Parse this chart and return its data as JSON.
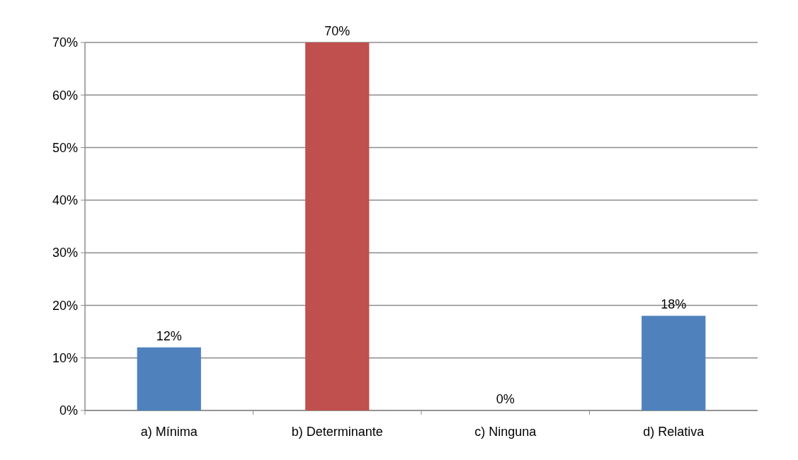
{
  "chart_data": {
    "type": "bar",
    "categories": [
      "a) Mínima",
      "b) Determinante",
      "c) Ninguna",
      "d) Relativa"
    ],
    "values": [
      12,
      70,
      0,
      18
    ],
    "colors": [
      "#4f81bd",
      "#c0504d",
      "#9bbb59",
      "#4f81bd"
    ],
    "value_labels": [
      "12%",
      "70%",
      "0%",
      "18%"
    ],
    "ylim": [
      0,
      70
    ],
    "yticks": [
      {
        "value": 0,
        "label": "0%"
      },
      {
        "value": 10,
        "label": "10%"
      },
      {
        "value": 20,
        "label": "20%"
      },
      {
        "value": 30,
        "label": "30%"
      },
      {
        "value": 40,
        "label": "40%"
      },
      {
        "value": 50,
        "label": "50%"
      },
      {
        "value": 60,
        "label": "60%"
      },
      {
        "value": 70,
        "label": "70%"
      }
    ],
    "grid": true
  }
}
